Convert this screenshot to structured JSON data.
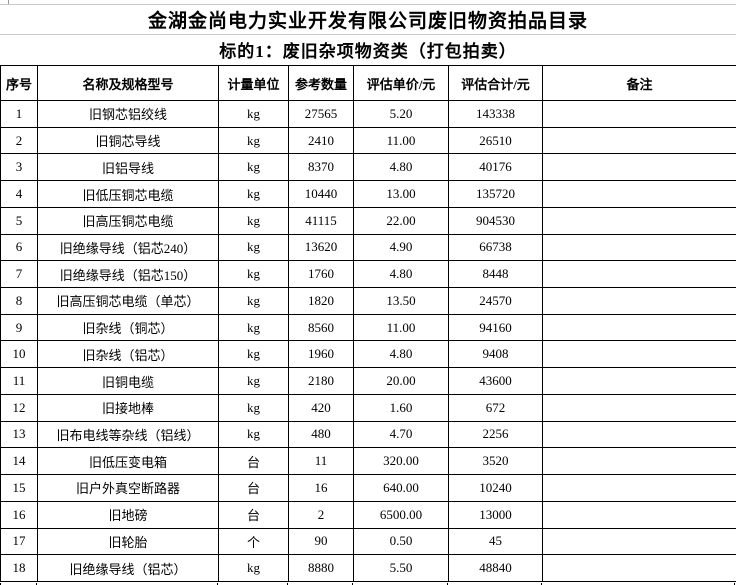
{
  "sheet": {
    "title": "金湖金尚电力实业开发有限公司废旧物资拍品目录",
    "subtitle": "标的1：废旧杂项物资类（打包拍卖）"
  },
  "table": {
    "headers": [
      "序号",
      "名称及规格型号",
      "计量单位",
      "参考数量",
      "评估单价/元",
      "评估合计/元",
      "备注"
    ],
    "rows": [
      {
        "no": "1",
        "name": "旧钢芯铝绞线",
        "unit": "kg",
        "qty": "27565",
        "price": "5.20",
        "total": "143338",
        "remark": ""
      },
      {
        "no": "2",
        "name": "旧铜芯导线",
        "unit": "kg",
        "qty": "2410",
        "price": "11.00",
        "total": "26510",
        "remark": ""
      },
      {
        "no": "3",
        "name": "旧铝导线",
        "unit": "kg",
        "qty": "8370",
        "price": "4.80",
        "total": "40176",
        "remark": ""
      },
      {
        "no": "4",
        "name": "旧低压铜芯电缆",
        "unit": "kg",
        "qty": "10440",
        "price": "13.00",
        "total": "135720",
        "remark": ""
      },
      {
        "no": "5",
        "name": "旧高压铜芯电缆",
        "unit": "kg",
        "qty": "41115",
        "price": "22.00",
        "total": "904530",
        "remark": ""
      },
      {
        "no": "6",
        "name": "旧绝缘导线（铝芯240）",
        "unit": "kg",
        "qty": "13620",
        "price": "4.90",
        "total": "66738",
        "remark": ""
      },
      {
        "no": "7",
        "name": "旧绝缘导线（铝芯150）",
        "unit": "kg",
        "qty": "1760",
        "price": "4.80",
        "total": "8448",
        "remark": ""
      },
      {
        "no": "8",
        "name": "旧高压铜芯电缆（单芯）",
        "unit": "kg",
        "qty": "1820",
        "price": "13.50",
        "total": "24570",
        "remark": ""
      },
      {
        "no": "9",
        "name": "旧杂线（铜芯）",
        "unit": "kg",
        "qty": "8560",
        "price": "11.00",
        "total": "94160",
        "remark": ""
      },
      {
        "no": "10",
        "name": "旧杂线（铝芯）",
        "unit": "kg",
        "qty": "1960",
        "price": "4.80",
        "total": "9408",
        "remark": ""
      },
      {
        "no": "11",
        "name": "旧铜电缆",
        "unit": "kg",
        "qty": "2180",
        "price": "20.00",
        "total": "43600",
        "remark": ""
      },
      {
        "no": "12",
        "name": "旧接地棒",
        "unit": "kg",
        "qty": "420",
        "price": "1.60",
        "total": "672",
        "remark": ""
      },
      {
        "no": "13",
        "name": "旧布电线等杂线（铝线）",
        "unit": "kg",
        "qty": "480",
        "price": "4.70",
        "total": "2256",
        "remark": ""
      },
      {
        "no": "14",
        "name": "旧低压变电箱",
        "unit": "台",
        "qty": "11",
        "price": "320.00",
        "total": "3520",
        "remark": ""
      },
      {
        "no": "15",
        "name": "旧户外真空断路器",
        "unit": "台",
        "qty": "16",
        "price": "640.00",
        "total": "10240",
        "remark": ""
      },
      {
        "no": "16",
        "name": "旧地磅",
        "unit": "台",
        "qty": "2",
        "price": "6500.00",
        "total": "13000",
        "remark": ""
      },
      {
        "no": "17",
        "name": "旧轮胎",
        "unit": "个",
        "qty": "90",
        "price": "0.50",
        "total": "45",
        "remark": ""
      },
      {
        "no": "18",
        "name": "旧绝缘导线（铝芯）",
        "unit": "kg",
        "qty": "8880",
        "price": "5.50",
        "total": "48840",
        "remark": ""
      }
    ]
  },
  "colors": {
    "border": "#000000",
    "text": "#000000",
    "background": "#ffffff",
    "gridline": "#c9c9c9"
  }
}
